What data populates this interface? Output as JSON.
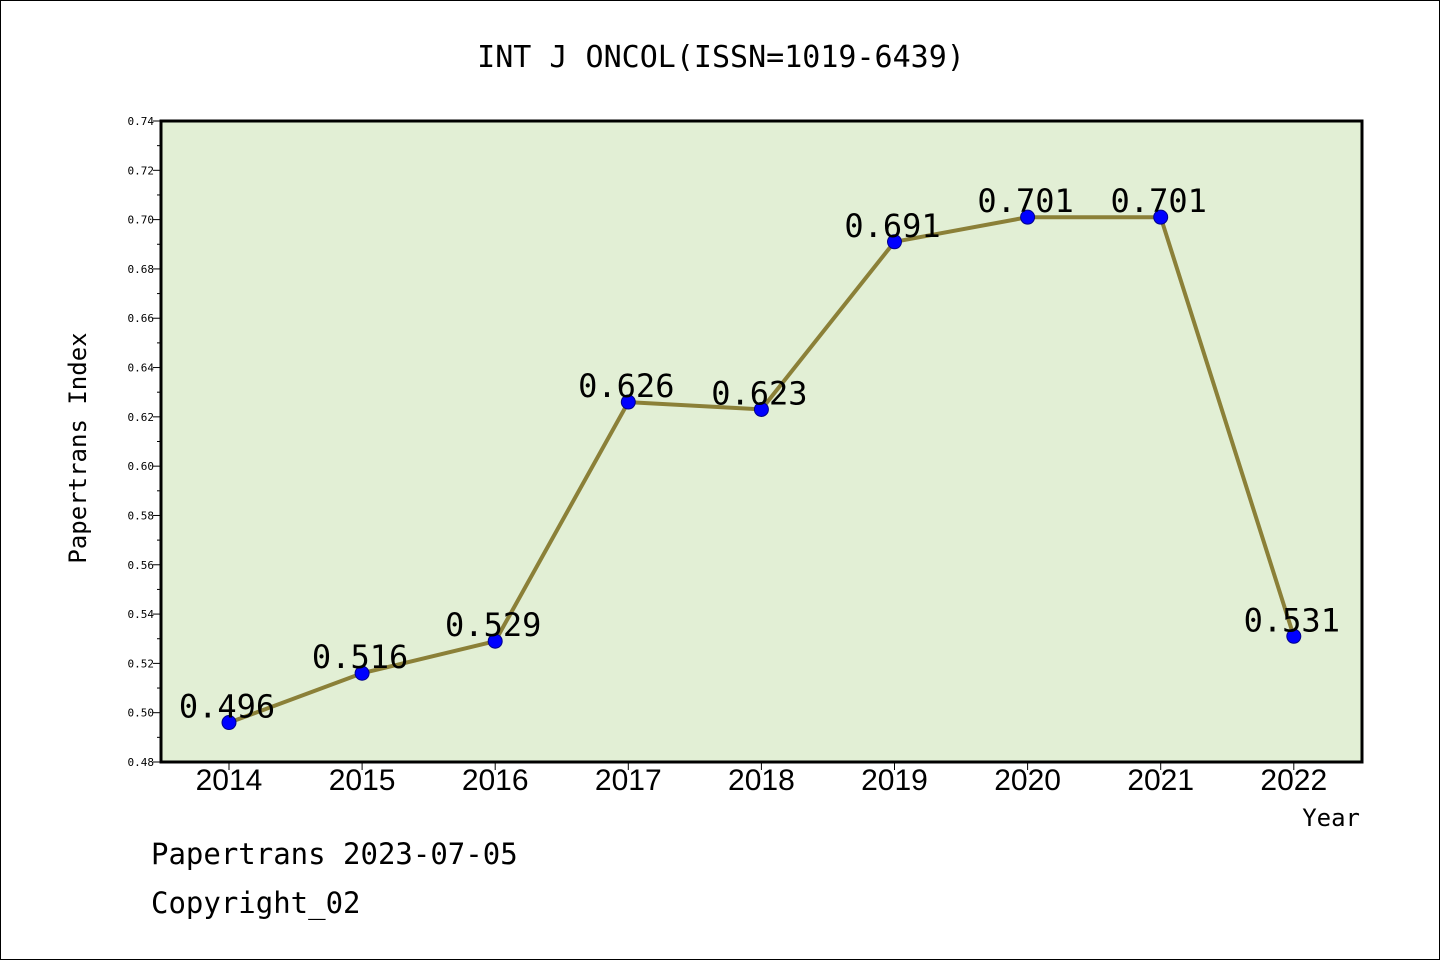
{
  "chart_data": {
    "type": "line",
    "title": "INT J ONCOL(ISSN=1019-6439)",
    "xlabel": "Year",
    "ylabel": "Papertrans Index",
    "categories": [
      "2014",
      "2015",
      "2016",
      "2017",
      "2018",
      "2019",
      "2020",
      "2021",
      "2022"
    ],
    "series": [
      {
        "values": [
          0.496,
          0.516,
          0.529,
          0.626,
          0.623,
          0.691,
          0.701,
          0.701,
          0.531
        ]
      }
    ],
    "data_labels": [
      "0.496",
      "0.516",
      "0.529",
      "0.626",
      "0.623",
      "0.691",
      "0.701",
      "0.701",
      "0.531"
    ],
    "ylim": [
      0.48,
      0.74
    ],
    "yticks": [
      "0.48",
      "0.50",
      "0.52",
      "0.54",
      "0.56",
      "0.58",
      "0.60",
      "0.62",
      "0.64",
      "0.66",
      "0.68",
      "0.70",
      "0.72",
      "0.74"
    ],
    "grid": false,
    "colors": {
      "plot_background": "#e2efd5",
      "line": "#8b8038",
      "marker": "#0000ff"
    }
  },
  "footer": {
    "line1": "Papertrans 2023-07-05",
    "line2": "Copyright_02"
  }
}
